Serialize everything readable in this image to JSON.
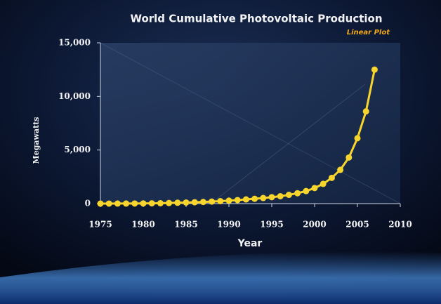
{
  "chart_data": {
    "type": "line",
    "title": "World Cumulative Photovoltaic Production",
    "subtitle": "Linear Plot",
    "x_label": "Year",
    "y_label": "Megawatts",
    "x": [
      1975,
      1976,
      1977,
      1978,
      1979,
      1980,
      1981,
      1982,
      1983,
      1984,
      1985,
      1986,
      1987,
      1988,
      1989,
      1990,
      1991,
      1992,
      1993,
      1994,
      1995,
      1996,
      1997,
      1998,
      1999,
      2000,
      2001,
      2002,
      2003,
      2004,
      2005,
      2006,
      2007
    ],
    "values": [
      2,
      3,
      5,
      7,
      11,
      18,
      25,
      35,
      55,
      80,
      100,
      125,
      155,
      190,
      230,
      275,
      330,
      390,
      450,
      520,
      600,
      690,
      815,
      970,
      1170,
      1450,
      1840,
      2400,
      3150,
      4300,
      6100,
      8600,
      12500
    ],
    "color": "#f7d52c",
    "xlim": [
      1975,
      2010
    ],
    "xticks": [
      1975,
      1980,
      1985,
      1990,
      1995,
      2000,
      2005,
      2010
    ],
    "ylim": [
      0,
      15000
    ],
    "yticks": [
      0,
      {
        "value": 5000,
        "label": "5,000"
      },
      {
        "value": 10000,
        "label": "10,000"
      },
      {
        "value": 15000,
        "label": "15,000"
      }
    ]
  }
}
